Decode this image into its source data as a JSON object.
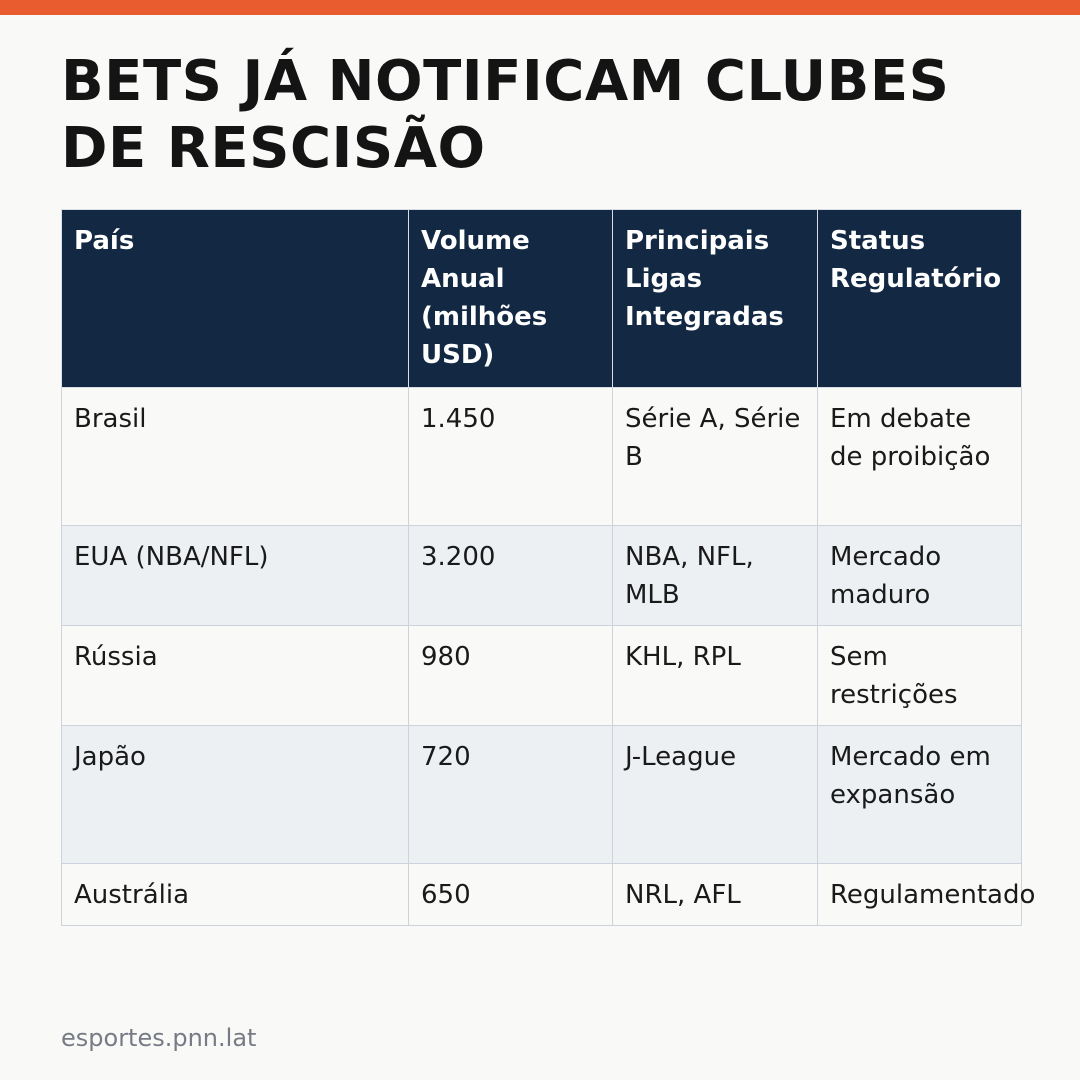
{
  "headline": "BETS JÁ NOTIFICAM CLUBES DE RESCISÃO",
  "table": {
    "headers": [
      "País",
      "Volume Anual (milhões USD)",
      "Principais Ligas Integradas",
      "Status Regulatório"
    ],
    "rows": [
      [
        "Brasil",
        "1.450",
        "Série A, Série B",
        "Em debate de proibição"
      ],
      [
        "EUA (NBA/NFL)",
        "3.200",
        "NBA, NFL, MLB",
        "Mercado maduro"
      ],
      [
        "Rússia",
        "980",
        "KHL, RPL",
        "Sem restrições"
      ],
      [
        "Japão",
        "720",
        "J-League",
        "Mercado em expansão"
      ],
      [
        "Austrália",
        "650",
        "NRL, AFL",
        "Regulamentado"
      ]
    ]
  },
  "footer": "esportes.pnn.lat",
  "colors": {
    "accent": "#e85c2f",
    "header_bg": "#132943",
    "row_alt_bg": "#edf0f3",
    "page_bg": "#f9f9f7"
  }
}
